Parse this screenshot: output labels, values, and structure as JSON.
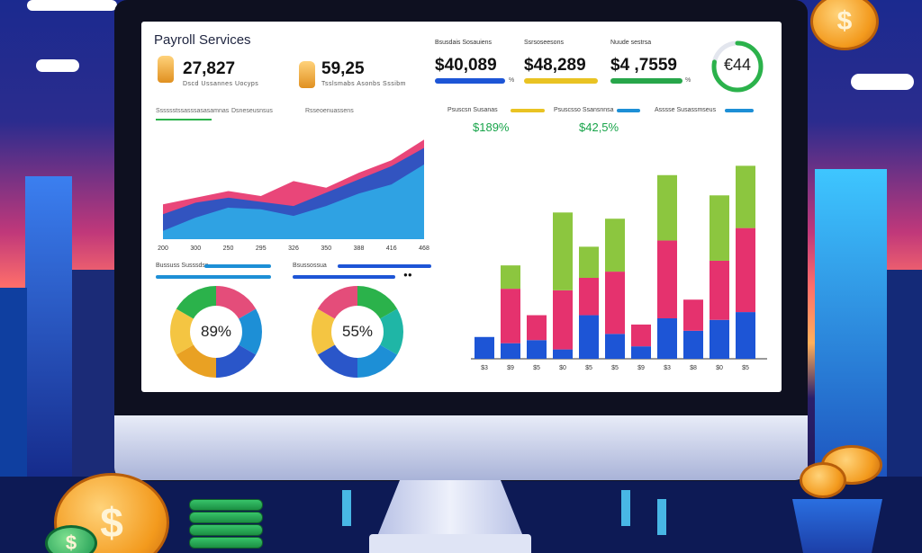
{
  "header": {
    "title": "Payroll Services"
  },
  "stats": [
    {
      "value": "27,827",
      "caption": "Dscd Ussannes Uocyps"
    },
    {
      "value": "59,25",
      "caption": "Tsslsmabs Asonbs Sssibm"
    }
  ],
  "money_cards": [
    {
      "label": "Bsusdais Sosauiens",
      "value": "$40,089",
      "bar_color": "#1d55d6",
      "pct": "%"
    },
    {
      "label": "Ssrsoseesons",
      "value": "$48,289",
      "bar_color": "#e9c323",
      "pct": ""
    },
    {
      "label": "Nuude sestrsa",
      "value": "$4 ,7559",
      "bar_color": "#27a64a",
      "pct": "%"
    }
  ],
  "ring": {
    "value": "€44",
    "fill_fraction": 0.78
  },
  "tabs": [
    {
      "label": "Sssssstssasssasasamnas"
    },
    {
      "label": "Dsneseusnsus"
    },
    {
      "label": "Rsseoenuassens"
    }
  ],
  "bar_panel_labels": [
    {
      "label": "Psuscsn Susanas",
      "color": "#e9c323"
    },
    {
      "label": "Psuscsso Ssansnnsa",
      "color": "#1d8fd6"
    },
    {
      "label": "Asssse Susassmseus",
      "color": "#1d8fd6"
    }
  ],
  "bar_panel_pcts": [
    "$189%",
    "$42,5%"
  ],
  "mid_labels": [
    {
      "label": "Bussuss Susssdss",
      "color": "#1d8fd6"
    },
    {
      "label": "Bsussossua",
      "color": "#1d55d6"
    }
  ],
  "donuts": [
    {
      "text": "89%",
      "colors": [
        "#e44d7a",
        "#1d8fd6",
        "#2a56c9",
        "#e9a123",
        "#f4c542",
        "#2bb24b"
      ]
    },
    {
      "text": "55%",
      "colors": [
        "#2bb24b",
        "#1fb6a6",
        "#1d8fd6",
        "#2a56c9",
        "#f4c542",
        "#e44d7a"
      ]
    }
  ],
  "icons": {
    "dollar": "$",
    "glasses": "●●"
  },
  "chart_data": [
    {
      "type": "area",
      "title": "",
      "x": [
        "200",
        "300",
        "250",
        "295",
        "326",
        "350",
        "388",
        "416",
        "468"
      ],
      "series": [
        {
          "values": [
            42,
            50,
            58,
            52,
            70,
            62,
            80,
            95,
            120
          ]
        },
        {
          "values": [
            30,
            44,
            50,
            45,
            40,
            56,
            72,
            88,
            110
          ]
        },
        {
          "values": [
            10,
            26,
            38,
            36,
            28,
            40,
            55,
            66,
            90
          ]
        }
      ],
      "colors": [
        "#e7366e",
        "#2256c7",
        "#2fa9e6"
      ],
      "grid": false
    },
    {
      "type": "bar",
      "title": "",
      "categories": [
        "$3",
        "$9",
        "$5",
        "$0",
        "$5",
        "$5",
        "$9",
        "$3",
        "$8",
        "$0",
        "$5"
      ],
      "series": [
        {
          "values": [
            14,
            10,
            12,
            6,
            28,
            16,
            8,
            26,
            18,
            25,
            30
          ]
        },
        {
          "values": [
            0,
            35,
            16,
            38,
            24,
            40,
            14,
            50,
            20,
            38,
            54
          ]
        },
        {
          "values": [
            0,
            15,
            0,
            50,
            20,
            34,
            0,
            42,
            0,
            42,
            40
          ]
        }
      ],
      "colors": [
        "#1d55d6",
        "#e5326e",
        "#8cc63f"
      ],
      "y_ticks": [
        "0",
        "25%",
        "25%",
        "25%"
      ]
    }
  ]
}
